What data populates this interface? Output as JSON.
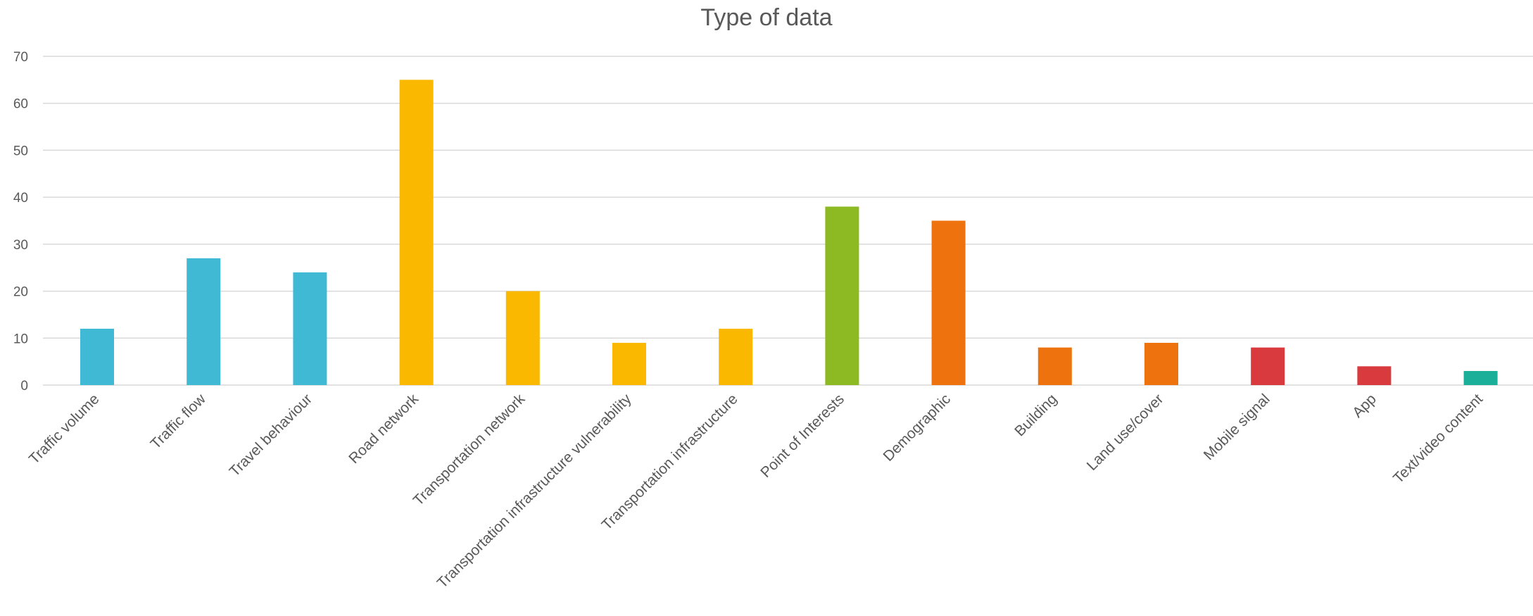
{
  "chart_data": {
    "type": "bar",
    "title": "Type of data",
    "xlabel": "",
    "ylabel": "",
    "ylim": [
      0,
      70
    ],
    "yticks": [
      0,
      10,
      20,
      30,
      40,
      50,
      60,
      70
    ],
    "grid": true,
    "legend": "none",
    "categories": [
      "Traffic volume",
      "Traffic flow",
      "Travel behaviour",
      "Road network",
      "Transportation network",
      "Transportation infrastructure vulnerability",
      "Transportation infrastructure",
      "Point of Interests",
      "Demographic",
      "Building",
      "Land use/cover",
      "Mobile signal",
      "App",
      "Text/video content"
    ],
    "values": [
      12,
      27,
      24,
      65,
      20,
      9,
      12,
      38,
      35,
      8,
      9,
      8,
      4,
      3
    ],
    "colors": [
      "#40BAD4",
      "#40BAD4",
      "#40BAD4",
      "#FAB800",
      "#FAB800",
      "#FAB800",
      "#FAB800",
      "#8DB922",
      "#EE720D",
      "#EE720D",
      "#EE720D",
      "#D83A3D",
      "#D83A3D",
      "#1BAE98"
    ]
  }
}
